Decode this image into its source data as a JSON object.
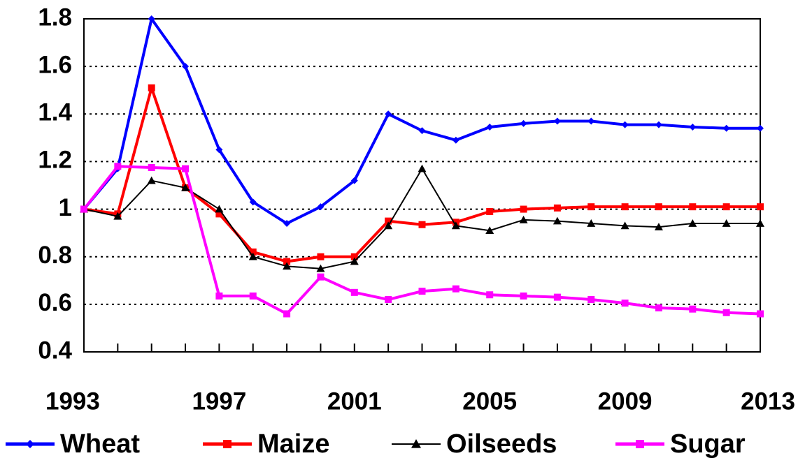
{
  "chart_data": {
    "type": "line",
    "x": [
      1993,
      1994,
      1995,
      1996,
      1997,
      1998,
      1999,
      2000,
      2001,
      2002,
      2003,
      2004,
      2005,
      2006,
      2007,
      2008,
      2009,
      2010,
      2011,
      2012,
      2013
    ],
    "xlim": [
      1993,
      2013
    ],
    "xticks": [
      1993,
      1997,
      2001,
      2005,
      2009,
      2013
    ],
    "ylim": [
      0.4,
      1.8
    ],
    "yticks": [
      0.4,
      0.6,
      0.8,
      1,
      1.2,
      1.4,
      1.6,
      1.8
    ],
    "grid": true,
    "legend": "bottom",
    "series": [
      {
        "name": "Wheat",
        "color": "#0000ff",
        "marker": "diamond",
        "values": [
          1.0,
          1.17,
          1.8,
          1.6,
          1.25,
          1.03,
          0.94,
          1.01,
          1.12,
          1.4,
          1.33,
          1.29,
          1.345,
          1.36,
          1.37,
          1.37,
          1.355,
          1.355,
          1.345,
          1.34,
          1.34
        ]
      },
      {
        "name": "Maize",
        "color": "#ff0000",
        "marker": "square",
        "values": [
          1.0,
          0.98,
          1.51,
          1.09,
          0.98,
          0.82,
          0.78,
          0.8,
          0.8,
          0.95,
          0.935,
          0.945,
          0.99,
          1.0,
          1.005,
          1.01,
          1.01,
          1.01,
          1.01,
          1.01,
          1.01
        ]
      },
      {
        "name": "Oilseeds",
        "color": "#000000",
        "marker": "triangle",
        "values": [
          1.0,
          0.97,
          1.12,
          1.09,
          1.0,
          0.8,
          0.76,
          0.75,
          0.78,
          0.93,
          1.17,
          0.93,
          0.91,
          0.955,
          0.95,
          0.94,
          0.93,
          0.925,
          0.94,
          0.94,
          0.94
        ]
      },
      {
        "name": "Sugar",
        "color": "#ff00ff",
        "marker": "square",
        "values": [
          1.0,
          1.18,
          1.175,
          1.17,
          0.635,
          0.635,
          0.56,
          0.715,
          0.65,
          0.62,
          0.655,
          0.665,
          0.64,
          0.635,
          0.63,
          0.62,
          0.605,
          0.585,
          0.58,
          0.565,
          0.56
        ]
      }
    ]
  }
}
